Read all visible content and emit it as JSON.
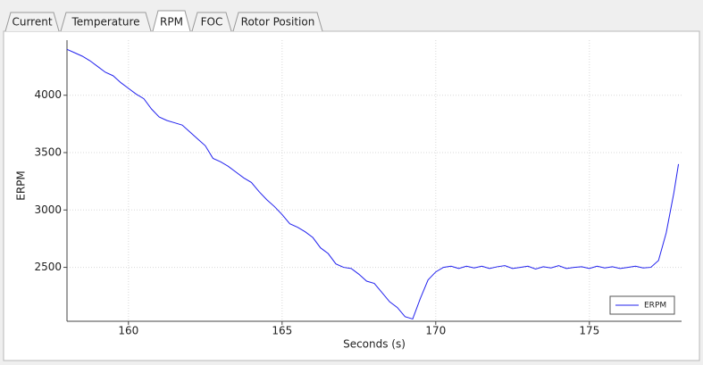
{
  "tabs": [
    "Current",
    "Temperature",
    "RPM",
    "FOC",
    "Rotor Position"
  ],
  "selected_tab": 2,
  "chart_data": {
    "type": "line",
    "xlabel": "Seconds (s)",
    "ylabel": "ERPM",
    "x": [
      158.0,
      158.25,
      158.5,
      158.75,
      159.0,
      159.25,
      159.5,
      159.75,
      160.0,
      160.25,
      160.5,
      160.75,
      161.0,
      161.25,
      161.5,
      161.75,
      162.0,
      162.25,
      162.5,
      162.75,
      163.0,
      163.25,
      163.5,
      163.75,
      164.0,
      164.25,
      164.5,
      164.75,
      165.0,
      165.25,
      165.5,
      165.75,
      166.0,
      166.25,
      166.5,
      166.75,
      167.0,
      167.25,
      167.5,
      167.75,
      168.0,
      168.25,
      168.5,
      168.75,
      169.0,
      169.25,
      169.5,
      169.75,
      170.0,
      170.25,
      170.5,
      170.75,
      171.0,
      171.25,
      171.5,
      171.75,
      172.0,
      172.25,
      172.5,
      172.75,
      173.0,
      173.25,
      173.5,
      173.75,
      174.0,
      174.25,
      174.5,
      174.75,
      175.0,
      175.25,
      175.5,
      175.75,
      176.0,
      176.25,
      176.5,
      176.75,
      177.0,
      177.25,
      177.5,
      177.75,
      177.9
    ],
    "series": [
      {
        "name": "ERPM",
        "color": "#2222ee",
        "values": [
          4400,
          4370,
          4340,
          4300,
          4250,
          4200,
          4170,
          4110,
          4060,
          4010,
          3970,
          3880,
          3810,
          3780,
          3760,
          3740,
          3680,
          3620,
          3560,
          3450,
          3420,
          3380,
          3330,
          3280,
          3240,
          3160,
          3090,
          3030,
          2960,
          2880,
          2850,
          2810,
          2760,
          2670,
          2620,
          2530,
          2500,
          2490,
          2440,
          2380,
          2360,
          2280,
          2200,
          2150,
          2070,
          2050,
          2230,
          2390,
          2460,
          2500,
          2510,
          2490,
          2510,
          2495,
          2510,
          2490,
          2505,
          2515,
          2490,
          2500,
          2510,
          2485,
          2505,
          2495,
          2515,
          2490,
          2500,
          2505,
          2490,
          2510,
          2495,
          2505,
          2490,
          2500,
          2510,
          2495,
          2500,
          2560,
          2800,
          3150,
          3400
        ]
      }
    ],
    "xlim": [
      158,
      178
    ],
    "ylim": [
      2030,
      4480
    ],
    "xticks": [
      160,
      165,
      170,
      175
    ],
    "yticks": [
      2500,
      3000,
      3500,
      4000
    ],
    "grid": true,
    "legend": "lower right"
  }
}
